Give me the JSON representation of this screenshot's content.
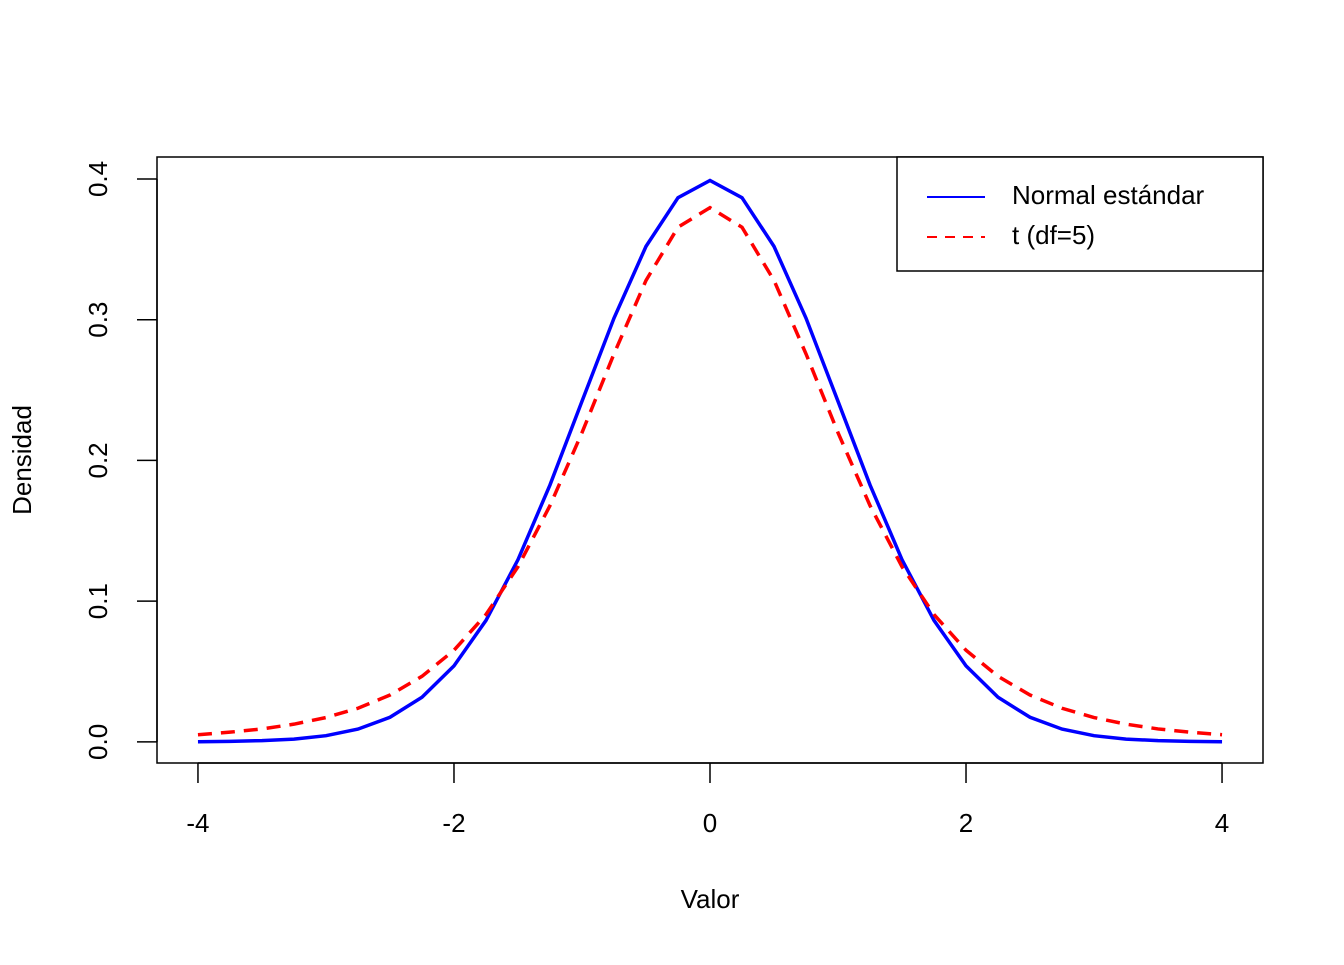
{
  "chart_data": {
    "type": "line",
    "x_label": "Valor",
    "y_label": "Densidad",
    "x": [
      -4,
      -3.75,
      -3.5,
      -3.25,
      -3,
      -2.75,
      -2.5,
      -2.25,
      -2,
      -1.75,
      -1.5,
      -1.25,
      -1,
      -0.75,
      -0.5,
      -0.25,
      0,
      0.25,
      0.5,
      0.75,
      1,
      1.25,
      1.5,
      1.75,
      2,
      2.25,
      2.5,
      2.75,
      3,
      3.25,
      3.5,
      3.75,
      4
    ],
    "series": [
      {
        "name": "Normal estándar",
        "color": "#0000ff",
        "linestyle": "solid",
        "values": [
          0.0001,
          0.0004,
          0.0009,
          0.002,
          0.0044,
          0.0091,
          0.0175,
          0.0317,
          0.054,
          0.0863,
          0.1295,
          0.1826,
          0.242,
          0.3011,
          0.3521,
          0.3867,
          0.3989,
          0.3867,
          0.3521,
          0.3011,
          0.242,
          0.1826,
          0.1295,
          0.0863,
          0.054,
          0.0317,
          0.0175,
          0.0091,
          0.0044,
          0.002,
          0.0009,
          0.0004,
          0.0001
        ]
      },
      {
        "name": "t (df=5)",
        "color": "#ff0000",
        "linestyle": "dashed",
        "values": [
          0.0051,
          0.0069,
          0.0092,
          0.0126,
          0.0173,
          0.0239,
          0.0333,
          0.0466,
          0.0651,
          0.0905,
          0.1245,
          0.1679,
          0.2197,
          0.2757,
          0.3279,
          0.3657,
          0.3796,
          0.3657,
          0.3279,
          0.2757,
          0.2197,
          0.1679,
          0.1245,
          0.0905,
          0.0651,
          0.0466,
          0.0333,
          0.0239,
          0.0173,
          0.0126,
          0.0092,
          0.0069,
          0.0051
        ]
      }
    ],
    "xlim": [
      -4.32,
      4.32
    ],
    "ylim": [
      -0.015,
      0.4156
    ],
    "xticks": [
      -4,
      -2,
      0,
      2,
      4
    ],
    "yticks": [
      {
        "value": 0,
        "label": "0.0"
      },
      0.1,
      0.2,
      0.3,
      0.4
    ],
    "legend": "topright"
  }
}
